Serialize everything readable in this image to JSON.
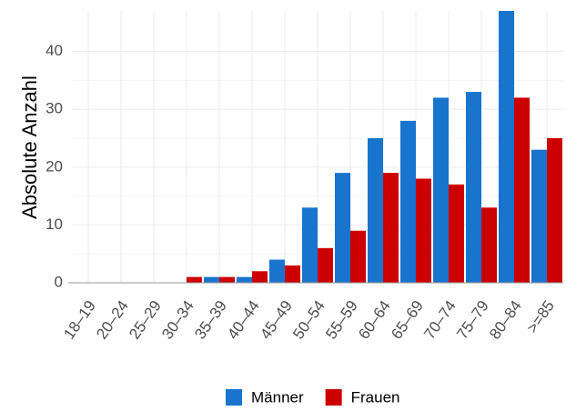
{
  "chart_data": {
    "type": "bar",
    "y_label": "Absolute Anzahl",
    "categories": [
      "18–19",
      "20–24",
      "25–29",
      "30–34",
      "35–39",
      "40–44",
      "45–49",
      "50–54",
      "55–59",
      "60–64",
      "65–69",
      "70–74",
      "75–79",
      "80–84",
      ">=85"
    ],
    "series": [
      {
        "name": "Männer",
        "color": "#1874cd",
        "values": [
          0,
          0,
          0,
          0,
          1,
          1,
          4,
          13,
          19,
          25,
          28,
          32,
          33,
          47,
          23
        ]
      },
      {
        "name": "Frauen",
        "color": "#cd0000",
        "values": [
          0,
          0,
          0,
          1,
          1,
          2,
          3,
          6,
          9,
          19,
          18,
          17,
          13,
          32,
          25
        ]
      }
    ],
    "ylim": [
      0,
      47
    ],
    "yticks": [
      0,
      10,
      20,
      30,
      40
    ],
    "grid": true,
    "legend": "bottom"
  }
}
